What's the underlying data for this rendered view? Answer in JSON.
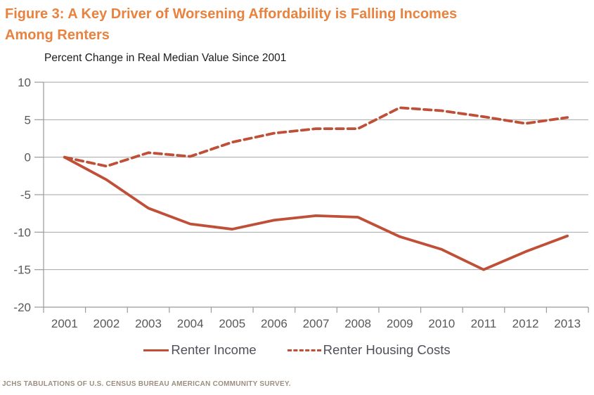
{
  "figure": {
    "title_lines": [
      "Figure 3: A Key Driver of Worsening Affordability is Falling Incomes",
      "Among Renters"
    ],
    "subtitle": "Percent Change in Real Median Value Since 2001",
    "source_note": "JCHS TABULATIONS OF U.S. CENSUS BUREAU AMERICAN COMMUNITY SURVEY.",
    "colors": {
      "title": "#e8823e",
      "line": "#c04f38",
      "grid": "#a6a6a6",
      "axis": "#9a9a9a",
      "axis_text": "#58595b",
      "legend_text": "#4f505a",
      "source_text": "#9b8e7e"
    }
  },
  "chart_data": {
    "type": "line",
    "title": "Figure 3: A Key Driver of Worsening Affordability is Falling Incomes Among Renters",
    "subtitle": "Percent Change in Real Median Value Since 2001",
    "x": [
      "2001",
      "2002",
      "2003",
      "2004",
      "2005",
      "2006",
      "2007",
      "2008",
      "2009",
      "2010",
      "2011",
      "2012",
      "2013"
    ],
    "series": [
      {
        "name": "Renter Income",
        "style": "solid",
        "values": [
          0,
          -3.0,
          -6.8,
          -8.9,
          -9.6,
          -8.4,
          -7.8,
          -8.0,
          -10.6,
          -12.3,
          -15.0,
          -12.6,
          -10.5
        ]
      },
      {
        "name": "Renter Housing Costs",
        "style": "dashed",
        "values": [
          0,
          -1.2,
          0.6,
          0.1,
          2.0,
          3.2,
          3.8,
          3.8,
          6.6,
          6.2,
          5.4,
          4.5,
          5.3
        ]
      }
    ],
    "xlabel": "",
    "ylabel": "",
    "ylim": [
      -20,
      10
    ],
    "ytick_step": 5,
    "grid": true,
    "legend_position": "bottom"
  }
}
